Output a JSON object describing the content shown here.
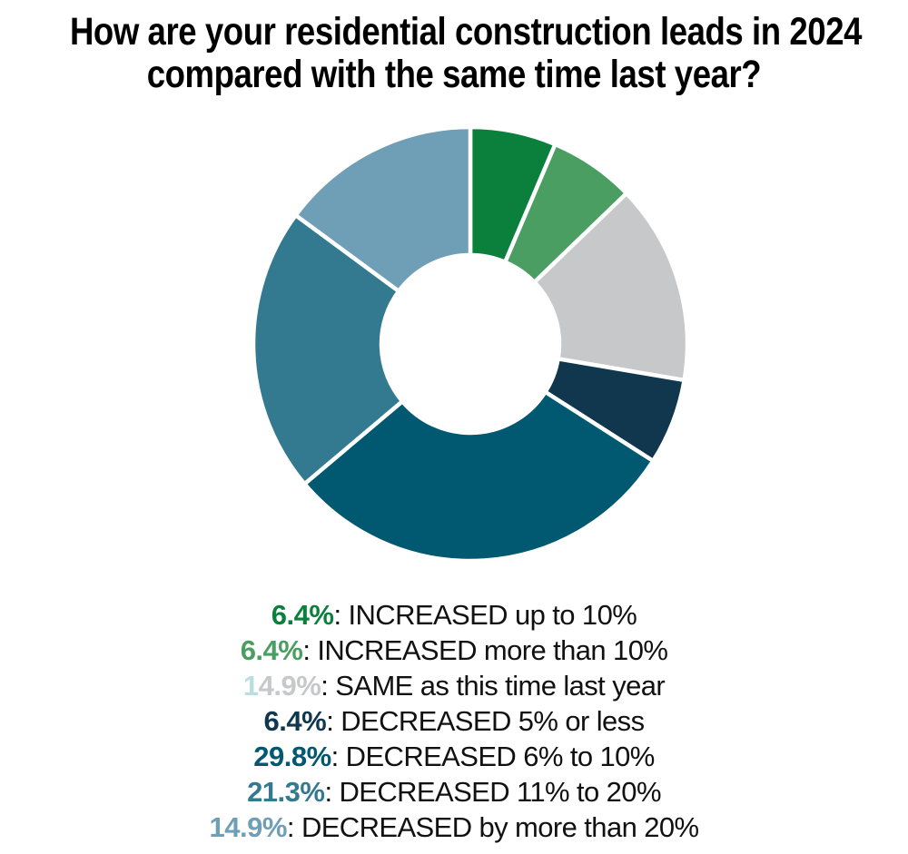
{
  "title": {
    "line1": "How are your residential construction leads in 2024",
    "line2": "compared with the same time last year?"
  },
  "chart_data": {
    "type": "pie",
    "subtype": "donut",
    "title": "How are your residential construction leads in 2024 compared with the same time last year?",
    "unit": "%",
    "start_angle_deg": 0,
    "direction": "clockwise",
    "inner_radius_ratio": 0.41,
    "slice_gap_color": "#ffffff",
    "legend_position": "bottom",
    "separator": ": ",
    "label_color": "#111111",
    "segments": [
      {
        "label": "INCREASED up to 10%",
        "value": 6.4,
        "pct_text": "6.4%",
        "color": "#0b803d"
      },
      {
        "label": "INCREASED more than 10%",
        "value": 6.4,
        "pct_text": "6.4%",
        "color": "#4a9e62"
      },
      {
        "label": "SAME as this time last year",
        "value": 14.9,
        "pct_text": "14.9%",
        "color": "#c7c8ca",
        "pct_split": {
          "prefix_len": 1,
          "prefix_color": "#b9dde4"
        }
      },
      {
        "label": "DECREASED 5% or less",
        "value": 6.4,
        "pct_text": "6.4%",
        "color": "#11374e"
      },
      {
        "label": "DECREASED 6% to 10%",
        "value": 29.8,
        "pct_text": "29.8%",
        "color": "#005970"
      },
      {
        "label": "DECREASED 11% to 20%",
        "value": 21.3,
        "pct_text": "21.3%",
        "color": "#337a91"
      },
      {
        "label": "DECREASED by more than 20%",
        "value": 14.9,
        "pct_text": "14.9%",
        "color": "#6f9fb6"
      }
    ]
  }
}
